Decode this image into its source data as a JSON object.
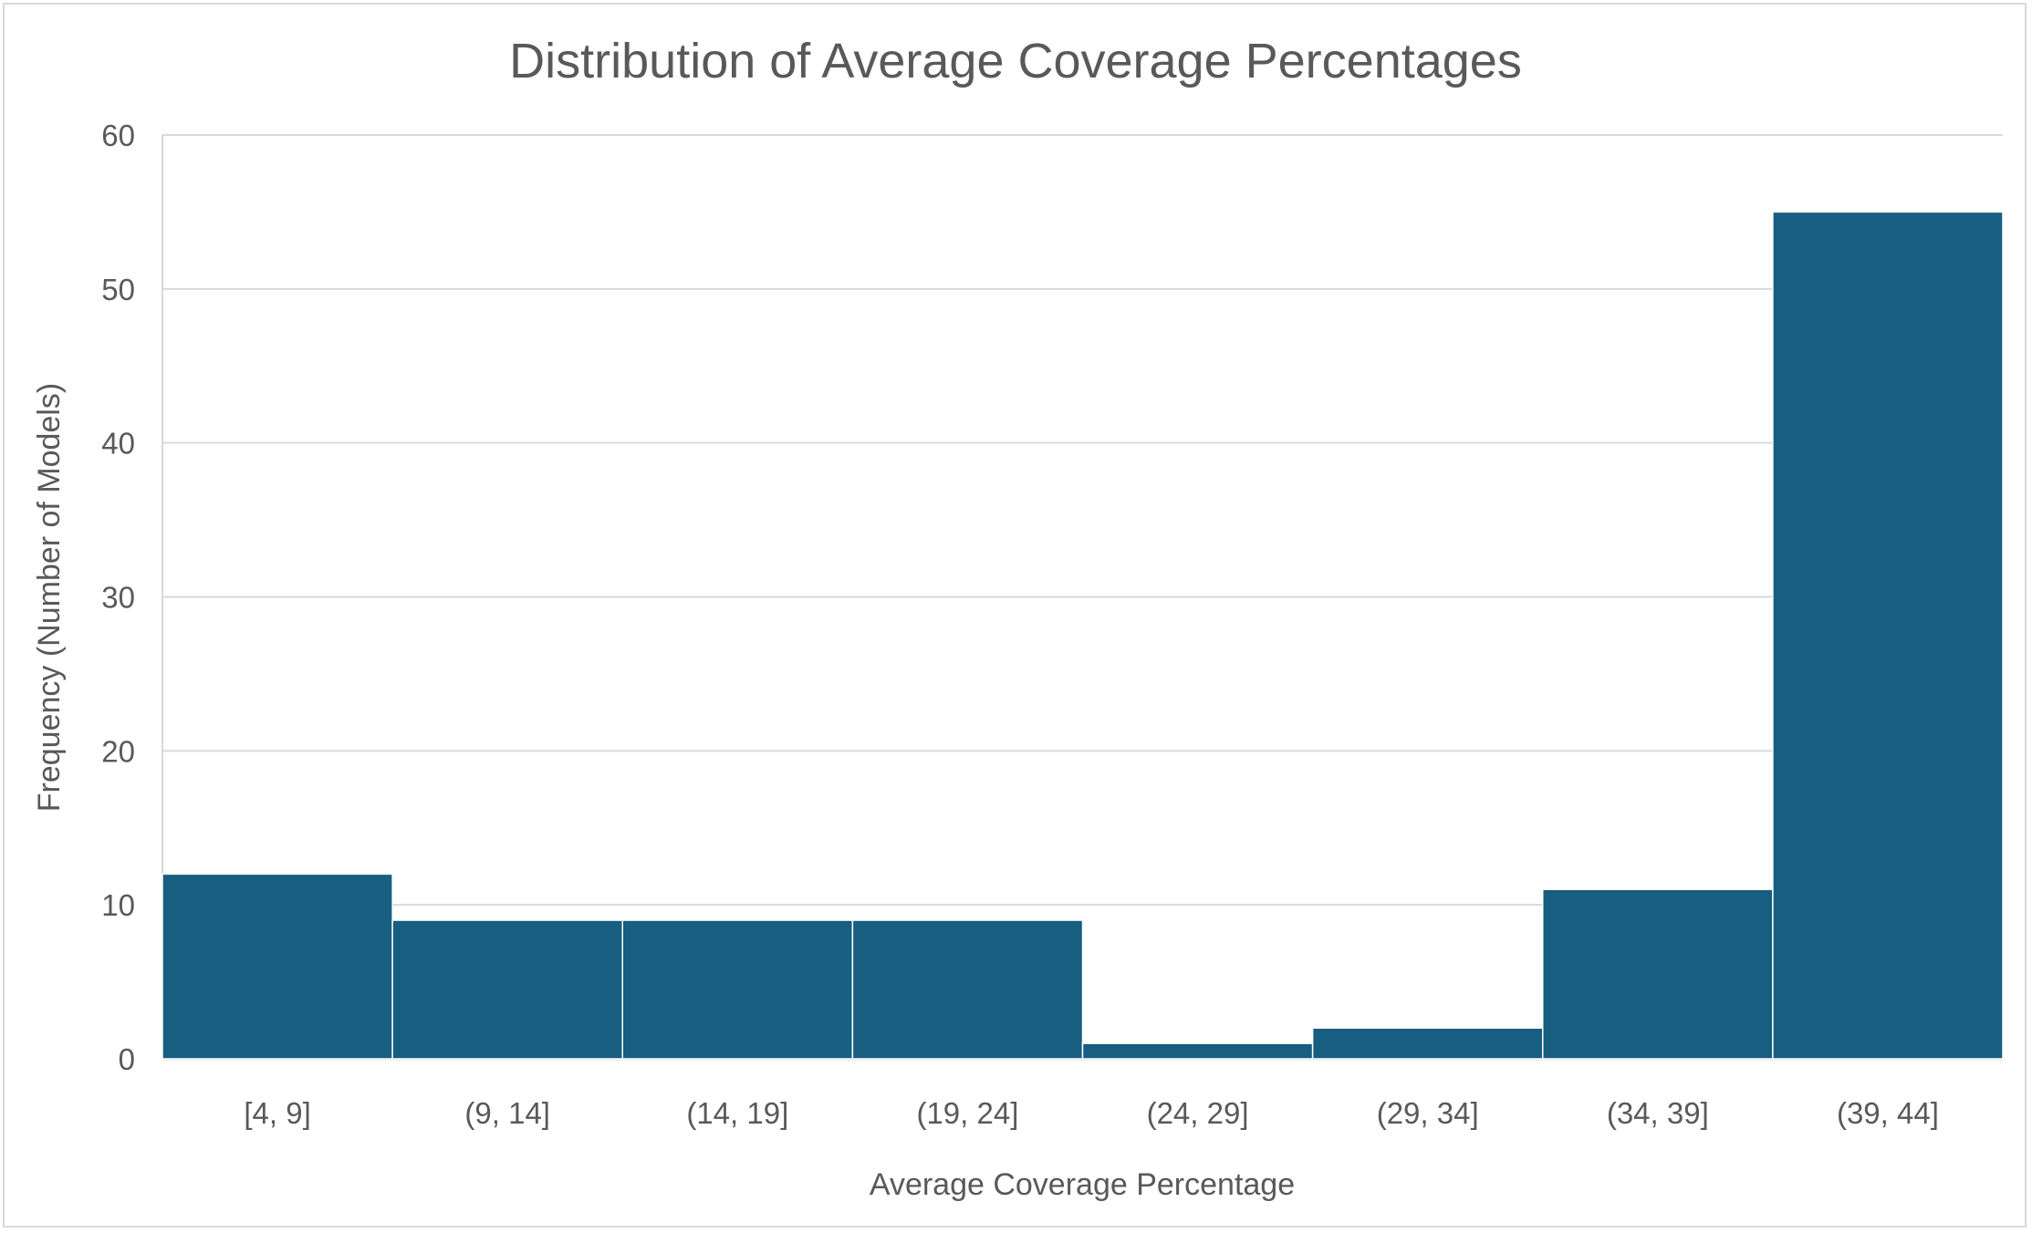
{
  "chart_data": {
    "type": "bar",
    "title": "Distribution of Average Coverage Percentages",
    "xlabel": "Average Coverage Percentage",
    "ylabel": "Frequency (Number of Models)",
    "categories": [
      "[4, 9]",
      "(9, 14]",
      "(14, 19]",
      "(19, 24]",
      "(24, 29]",
      "(29, 34]",
      "(34, 39]",
      "(39, 44]"
    ],
    "values": [
      12,
      9,
      9,
      9,
      1,
      2,
      11,
      55
    ],
    "ylim": [
      0,
      60
    ],
    "yticks": [
      "0",
      "10",
      "20",
      "30",
      "40",
      "50",
      "60"
    ],
    "grid": true,
    "legend": "none",
    "bar_color": "#175e80",
    "gridline_color": "#d9d9d9",
    "text_color": "#595959"
  }
}
